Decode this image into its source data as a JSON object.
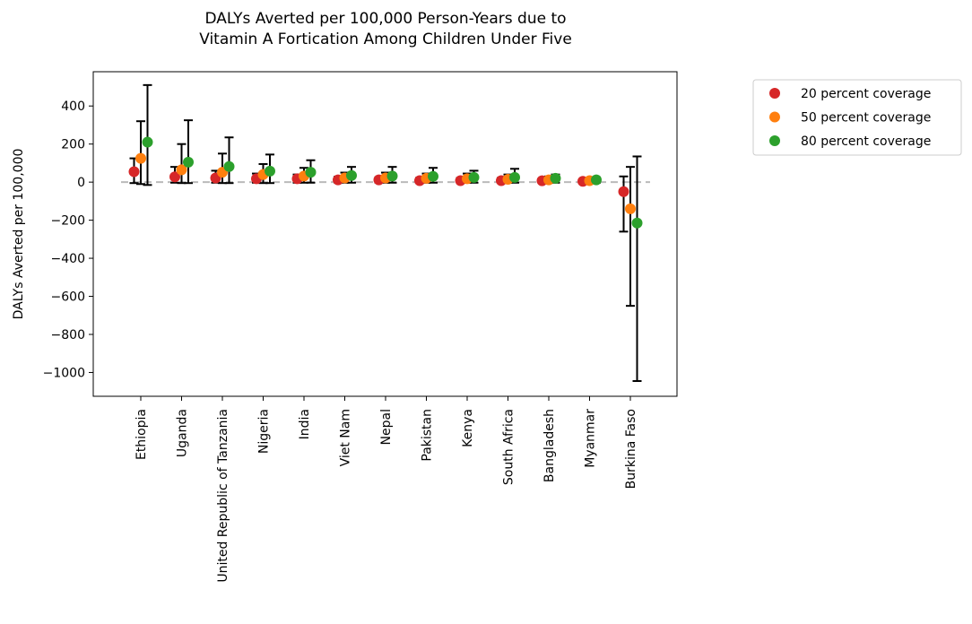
{
  "chart_data": {
    "type": "scatter",
    "title_lines": [
      "DALYs Averted per 100,000 Person-Years due to",
      "Vitamin A Fortication Among Children Under Five"
    ],
    "ylabel": "DALYs Averted per 100,000",
    "xlabel": "",
    "categories": [
      "Ethiopia",
      "Uganda",
      "United Republic of Tanzania",
      "Nigeria",
      "India",
      "Viet Nam",
      "Nepal",
      "Pakistan",
      "Kenya",
      "South Africa",
      "Bangladesh",
      "Myanmar",
      "Burkina Faso"
    ],
    "ylim": [
      -1125,
      580
    ],
    "yticks": [
      400,
      200,
      0,
      -200,
      -400,
      -600,
      -800,
      -1000
    ],
    "ytick_labels": [
      "400",
      "200",
      "0",
      "−200",
      "−400",
      "−600",
      "−800",
      "−1000"
    ],
    "reference_line": 0,
    "grid": false,
    "legend_position": "outside-top-right",
    "series": [
      {
        "name": "20 percent coverage",
        "color": "#d62728",
        "values": [
          55,
          28,
          22,
          18,
          18,
          12,
          12,
          8,
          8,
          8,
          7,
          4,
          -50
        ],
        "lower": [
          -5,
          -3,
          -3,
          -3,
          -3,
          -2,
          -2,
          -2,
          -2,
          -2,
          -2,
          -2,
          -260
        ],
        "upper": [
          125,
          80,
          60,
          45,
          40,
          28,
          25,
          22,
          22,
          22,
          18,
          12,
          30
        ]
      },
      {
        "name": "50 percent coverage",
        "color": "#ff7f0e",
        "values": [
          125,
          65,
          52,
          40,
          32,
          22,
          22,
          20,
          18,
          15,
          12,
          8,
          -140
        ],
        "lower": [
          -10,
          -5,
          -5,
          -5,
          -3,
          -3,
          -3,
          -3,
          -3,
          -3,
          -3,
          -3,
          -650
        ],
        "upper": [
          320,
          200,
          150,
          95,
          75,
          50,
          50,
          45,
          45,
          40,
          30,
          20,
          80
        ]
      },
      {
        "name": "80 percent coverage",
        "color": "#2ca02c",
        "values": [
          210,
          105,
          82,
          58,
          52,
          35,
          32,
          30,
          25,
          25,
          20,
          12,
          -215
        ],
        "lower": [
          -15,
          -5,
          -5,
          -5,
          -3,
          -3,
          -3,
          -3,
          -3,
          -3,
          -3,
          -3,
          -1045
        ],
        "upper": [
          510,
          325,
          235,
          145,
          115,
          80,
          80,
          75,
          60,
          70,
          40,
          25,
          135
        ]
      }
    ]
  }
}
